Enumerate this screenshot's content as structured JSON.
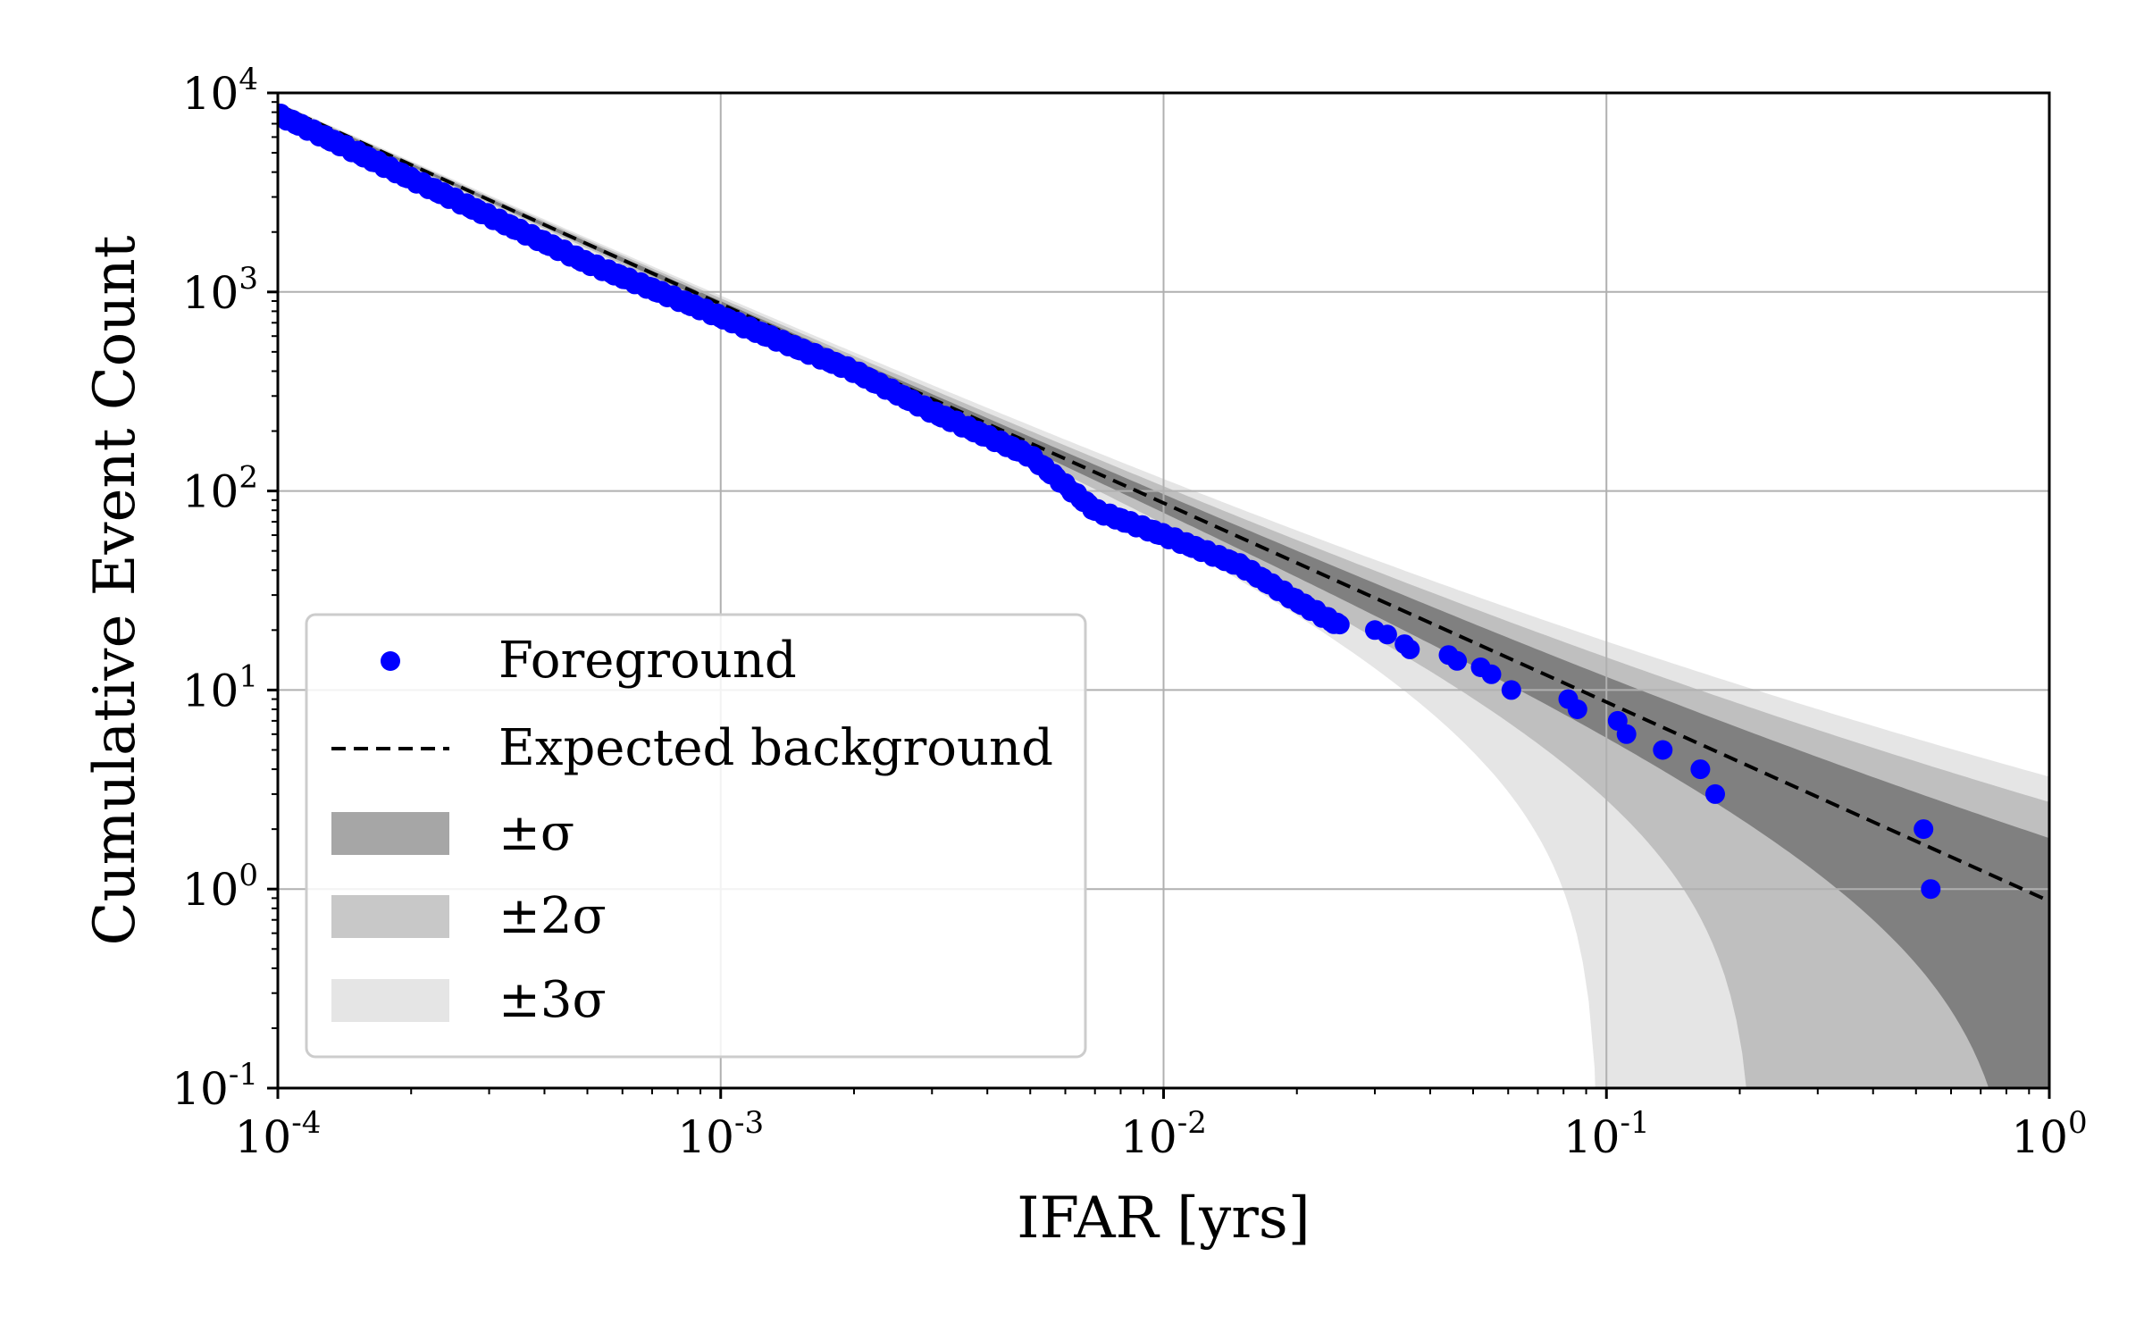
{
  "chart_data": {
    "type": "scatter",
    "xlabel": "IFAR [yrs]",
    "ylabel": "Cumulative Event Count",
    "xscale": "log",
    "yscale": "log",
    "xlim": [
      0.0001,
      1
    ],
    "ylim": [
      0.1,
      10000
    ],
    "grid": true,
    "x_ticks": [
      {
        "value": 0.0001,
        "base": "10",
        "exp": "-4"
      },
      {
        "value": 0.001,
        "base": "10",
        "exp": "-3"
      },
      {
        "value": 0.01,
        "base": "10",
        "exp": "-2"
      },
      {
        "value": 0.1,
        "base": "10",
        "exp": "-1"
      },
      {
        "value": 1,
        "base": "10",
        "exp": "0"
      }
    ],
    "y_ticks": [
      {
        "value": 0.1,
        "base": "10",
        "exp": "-1"
      },
      {
        "value": 1,
        "base": "10",
        "exp": "0"
      },
      {
        "value": 10,
        "base": "10",
        "exp": "1"
      },
      {
        "value": 100,
        "base": "10",
        "exp": "2"
      },
      {
        "value": 1000,
        "base": "10",
        "exp": "3"
      },
      {
        "value": 10000,
        "base": "10",
        "exp": "4"
      }
    ],
    "expected_background": {
      "name": "Expected background",
      "x": [
        0.0001,
        1
      ],
      "y": [
        8700,
        0.87
      ]
    },
    "bands": [
      {
        "name": "±3σ",
        "sigma": 3,
        "color": "#e5e5e5"
      },
      {
        "name": "±2σ",
        "sigma": 2,
        "color": "#bfbfbf"
      },
      {
        "name": "±σ",
        "sigma": 1,
        "color": "#808080"
      }
    ],
    "foreground": {
      "name": "Foreground",
      "color": "#0000ff",
      "trend_x": [
        0.0001,
        0.0002,
        0.0005,
        0.001,
        0.002,
        0.003,
        0.005,
        0.007,
        0.01,
        0.015,
        0.02,
        0.025
      ],
      "trend_y": [
        7800,
        3700,
        1400,
        750,
        400,
        250,
        150,
        80,
        60,
        42,
        28,
        21
      ],
      "x": [
        0.03,
        0.032,
        0.035,
        0.036,
        0.044,
        0.046,
        0.052,
        0.055,
        0.061,
        0.082,
        0.086,
        0.106,
        0.111,
        0.134,
        0.163,
        0.176,
        0.52,
        0.54
      ],
      "y": [
        20,
        19,
        17,
        16,
        15,
        14,
        13,
        12,
        10,
        9,
        8,
        7,
        6,
        5,
        4,
        3,
        2,
        1
      ]
    },
    "legend": {
      "position": "lower-left",
      "entries": [
        {
          "label": "Foreground",
          "kind": "marker"
        },
        {
          "label": "Expected background",
          "kind": "dashed"
        },
        {
          "label": "±σ",
          "kind": "patch1"
        },
        {
          "label": "±2σ",
          "kind": "patch2"
        },
        {
          "label": "±3σ",
          "kind": "patch3"
        }
      ]
    }
  }
}
